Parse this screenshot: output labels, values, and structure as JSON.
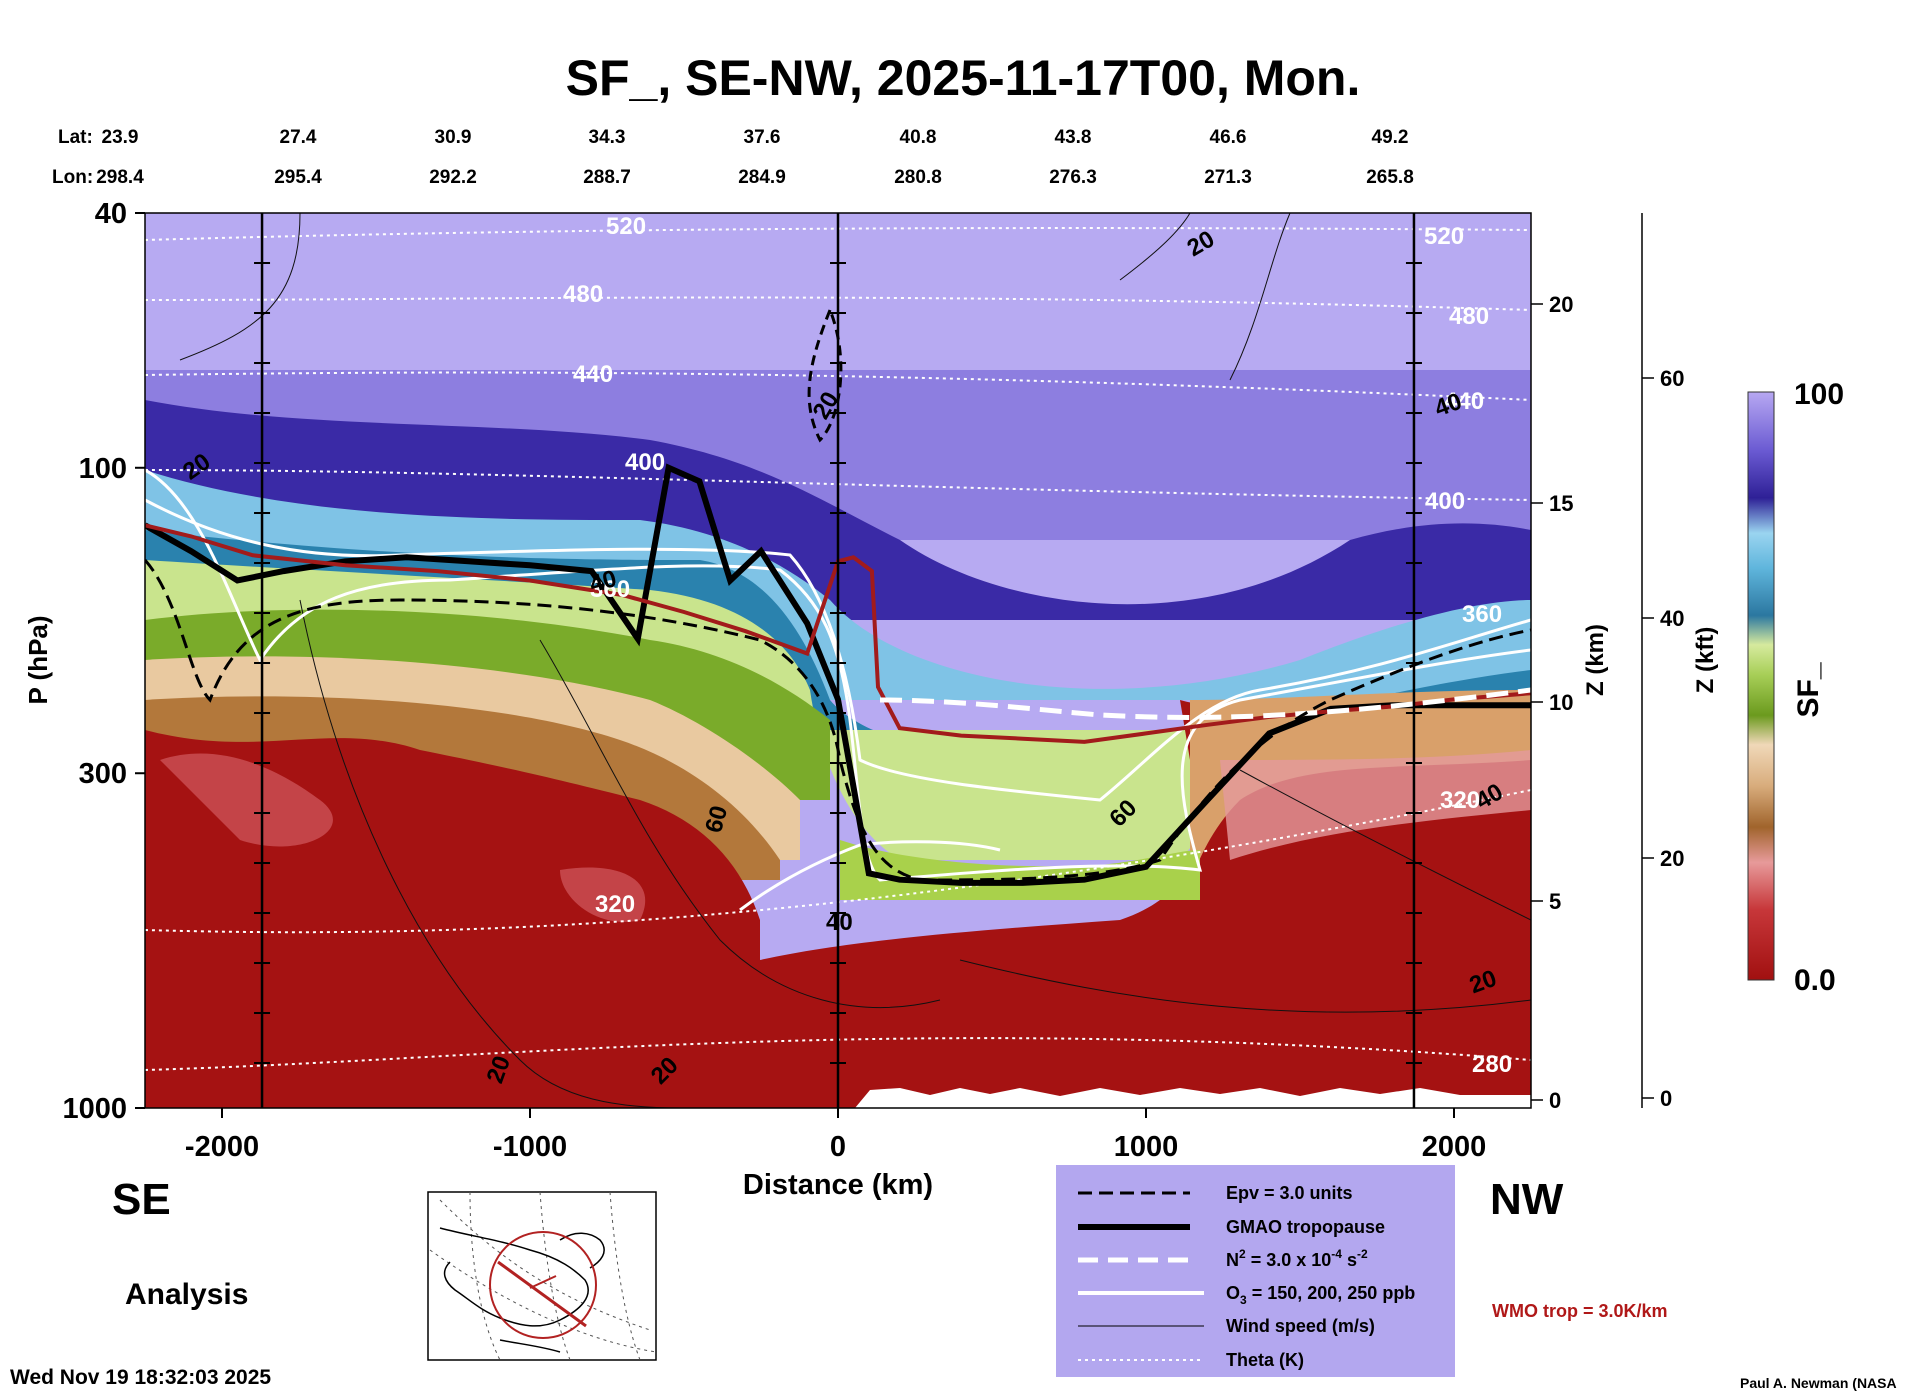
{
  "chart_data": {
    "type": "heatmap",
    "title": "SF_, SE-NW, 2025-11-17T00, Mon.",
    "xlabel": "Distance (km)",
    "ylabel": "P (hPa)",
    "y2label": "Z (km)",
    "y3label": "Z (kft)",
    "xlim": [
      -2250,
      2250
    ],
    "ylim_hpa": [
      1000,
      40
    ],
    "x_ticks": [
      -2000,
      -1000,
      0,
      1000,
      2000
    ],
    "x_tick_labels": [
      "-2000",
      "-1000",
      "0",
      "1000",
      "2000"
    ],
    "p_ticks": [
      40,
      100,
      300,
      1000
    ],
    "p_tick_labels": [
      "40",
      "100",
      "300",
      "1000"
    ],
    "z_km_ticks": [
      0,
      5,
      10,
      15,
      20
    ],
    "z_km_tick_labels": [
      "0",
      "5",
      "10",
      "15",
      "20"
    ],
    "z_kft_ticks": [
      0,
      20,
      40,
      60
    ],
    "z_kft_tick_labels": [
      "0",
      "20",
      "40",
      "60"
    ],
    "lat_label": "Lat:",
    "lon_label": "Lon:",
    "lat_values": [
      "23.9",
      "27.4",
      "30.9",
      "34.3",
      "37.6",
      "40.8",
      "43.8",
      "46.6",
      "49.2"
    ],
    "lon_values": [
      "298.4",
      "295.4",
      "292.2",
      "288.7",
      "284.9",
      "280.8",
      "276.3",
      "271.3",
      "265.8"
    ],
    "vertical_markers_km": [
      -1870,
      0,
      1870
    ],
    "tropopause_profile": {
      "x": [
        -2250,
        -2100,
        -1950,
        -1800,
        -1600,
        -1400,
        -1200,
        -1000,
        -800,
        -650,
        -550,
        -450,
        -350,
        -250,
        -100,
        0,
        100,
        200,
        400,
        600,
        800,
        1000,
        1200,
        1400,
        1600,
        1800,
        2000,
        2250
      ],
      "p": [
        123,
        135,
        150,
        145,
        140,
        138,
        140,
        142,
        145,
        185,
        100,
        105,
        150,
        135,
        175,
        230,
        430,
        440,
        445,
        445,
        440,
        420,
        330,
        260,
        238,
        235,
        235,
        235
      ]
    },
    "wmo_trop_profile": {
      "x": [
        -2250,
        -2100,
        -1900,
        -1600,
        -1300,
        -1000,
        -700,
        -500,
        -300,
        -100,
        0,
        50,
        110,
        130,
        200,
        400,
        600,
        800,
        1000,
        1200,
        1400,
        1600,
        1800,
        2000,
        2250
      ],
      "p": [
        123,
        128,
        137,
        142,
        145,
        150,
        158,
        168,
        180,
        195,
        140,
        138,
        145,
        220,
        255,
        262,
        265,
        268,
        260,
        252,
        245,
        240,
        236,
        230,
        225
      ]
    },
    "colorbar": {
      "label": "SF_",
      "max_label": "100",
      "min_label": "0.0",
      "range": [
        0.0,
        100
      ]
    },
    "contour_labels": [
      {
        "text": "520",
        "kind": "theta"
      },
      {
        "text": "480",
        "kind": "theta"
      },
      {
        "text": "440",
        "kind": "theta"
      },
      {
        "text": "400",
        "kind": "theta"
      },
      {
        "text": "360",
        "kind": "theta"
      },
      {
        "text": "320",
        "kind": "theta"
      },
      {
        "text": "520",
        "kind": "theta"
      },
      {
        "text": "480",
        "kind": "theta"
      },
      {
        "text": "440",
        "kind": "theta"
      },
      {
        "text": "400",
        "kind": "theta"
      },
      {
        "text": "360",
        "kind": "theta"
      },
      {
        "text": "320",
        "kind": "theta"
      },
      {
        "text": "280",
        "kind": "theta"
      },
      {
        "text": "20",
        "kind": "wind"
      },
      {
        "text": "20",
        "kind": "wind"
      },
      {
        "text": "20",
        "kind": "wind"
      },
      {
        "text": "40",
        "kind": "wind"
      },
      {
        "text": "40",
        "kind": "wind"
      },
      {
        "text": "40",
        "kind": "wind"
      },
      {
        "text": "20",
        "kind": "wind"
      },
      {
        "text": "20",
        "kind": "wind"
      },
      {
        "text": "20",
        "kind": "wind"
      },
      {
        "text": "60",
        "kind": "wind"
      },
      {
        "text": "60",
        "kind": "wind"
      },
      {
        "text": "40",
        "kind": "wind"
      },
      {
        "text": "40",
        "kind": "wind"
      }
    ]
  },
  "direction_left": "SE",
  "direction_right": "NW",
  "analysis_label": "Analysis",
  "timestamp": "Wed Nov 19 18:32:03 2025",
  "credit": "Paul A. Newman (NASA",
  "wmo_trop_label": "WMO trop = 3.0K/km",
  "legend": {
    "items": [
      {
        "label": "Epv = 3.0 units"
      },
      {
        "label": "GMAO tropopause"
      },
      {
        "label_base": "N",
        "label_sup1": "2",
        "label_mid": " = 3.0 x 10",
        "label_sup2": "-4",
        "label_mid2": " s",
        "label_sup3": "-2"
      },
      {
        "label_base": "O",
        "label_sub": "3",
        "label_rest": " = 150, 200, 250 ppb"
      },
      {
        "label": "Wind speed (m/s)"
      },
      {
        "label": "Theta (K)"
      }
    ]
  },
  "colors": {
    "legend_bg": "#b3a7ef",
    "trop_red": "#a21b1b",
    "wmo_text": "#b01818",
    "map_circle": "#b22222"
  }
}
